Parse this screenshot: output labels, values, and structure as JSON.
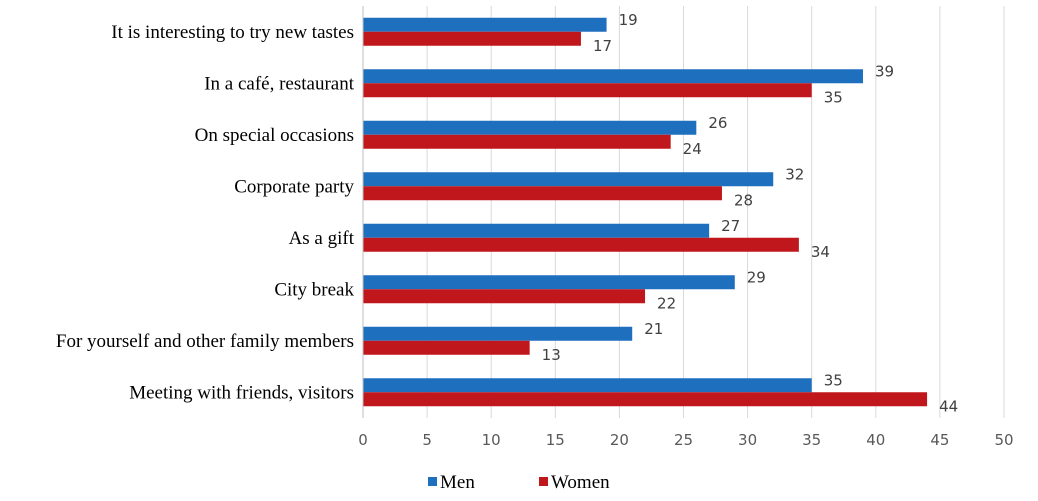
{
  "chart_data": {
    "type": "bar",
    "orientation": "horizontal",
    "categories": [
      "It is interesting to try new tastes",
      "In a café, restaurant",
      "On special occasions",
      "Corporate party",
      "As a gift",
      "City break",
      "For yourself and other family members",
      "Meeting with friends, visitors"
    ],
    "series": [
      {
        "name": "Men",
        "color": "#1f6fbf",
        "values": [
          19,
          39,
          26,
          32,
          27,
          29,
          21,
          35
        ]
      },
      {
        "name": "Women",
        "color": "#c0171c",
        "values": [
          17,
          35,
          24,
          28,
          34,
          22,
          13,
          44
        ]
      }
    ],
    "xlim": [
      0,
      50
    ],
    "xticks": [
      "0",
      "5",
      "10",
      "15",
      "20",
      "25",
      "30",
      "35",
      "40",
      "45",
      "50"
    ],
    "grid": "vertical",
    "legend": "bottom-left"
  }
}
